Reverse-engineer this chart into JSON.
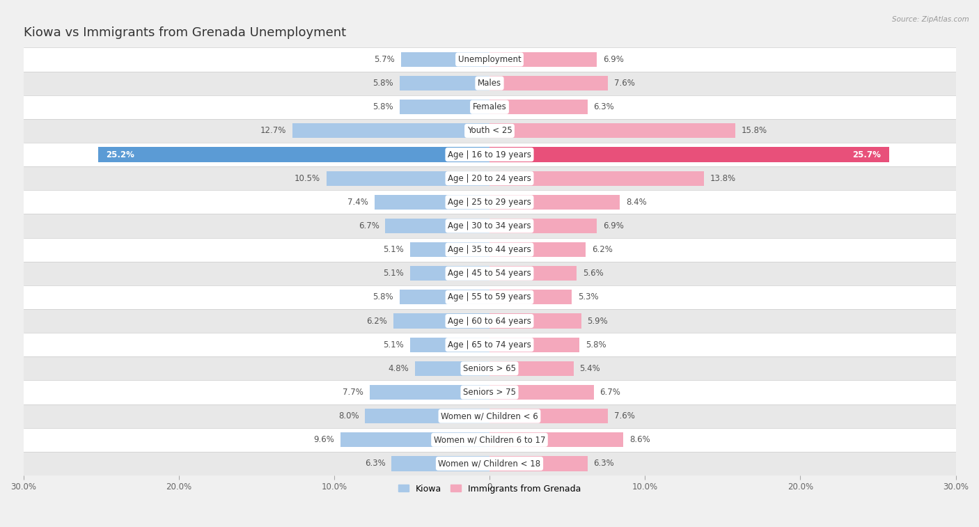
{
  "title": "Kiowa vs Immigrants from Grenada Unemployment",
  "source": "Source: ZipAtlas.com",
  "categories": [
    "Unemployment",
    "Males",
    "Females",
    "Youth < 25",
    "Age | 16 to 19 years",
    "Age | 20 to 24 years",
    "Age | 25 to 29 years",
    "Age | 30 to 34 years",
    "Age | 35 to 44 years",
    "Age | 45 to 54 years",
    "Age | 55 to 59 years",
    "Age | 60 to 64 years",
    "Age | 65 to 74 years",
    "Seniors > 65",
    "Seniors > 75",
    "Women w/ Children < 6",
    "Women w/ Children 6 to 17",
    "Women w/ Children < 18"
  ],
  "kiowa_values": [
    5.7,
    5.8,
    5.8,
    12.7,
    25.2,
    10.5,
    7.4,
    6.7,
    5.1,
    5.1,
    5.8,
    6.2,
    5.1,
    4.8,
    7.7,
    8.0,
    9.6,
    6.3
  ],
  "grenada_values": [
    6.9,
    7.6,
    6.3,
    15.8,
    25.7,
    13.8,
    8.4,
    6.9,
    6.2,
    5.6,
    5.3,
    5.9,
    5.8,
    5.4,
    6.7,
    7.6,
    8.6,
    6.3
  ],
  "kiowa_color": "#a8c8e8",
  "grenada_color": "#f4a8bc",
  "kiowa_highlight_color": "#5b9bd5",
  "grenada_highlight_color": "#e8507a",
  "highlight_index": 4,
  "axis_limit": 30.0,
  "background_color": "#f0f0f0",
  "row_color_light": "#ffffff",
  "row_color_dark": "#e8e8e8",
  "title_fontsize": 13,
  "label_fontsize": 8.5,
  "value_fontsize": 8.5,
  "tick_positions": [
    -30,
    -20,
    -10,
    0,
    10,
    20,
    30
  ],
  "tick_labels": [
    "30.0%",
    "20.0%",
    "10.0%",
    "0",
    "10.0%",
    "20.0%",
    "30.0%"
  ]
}
